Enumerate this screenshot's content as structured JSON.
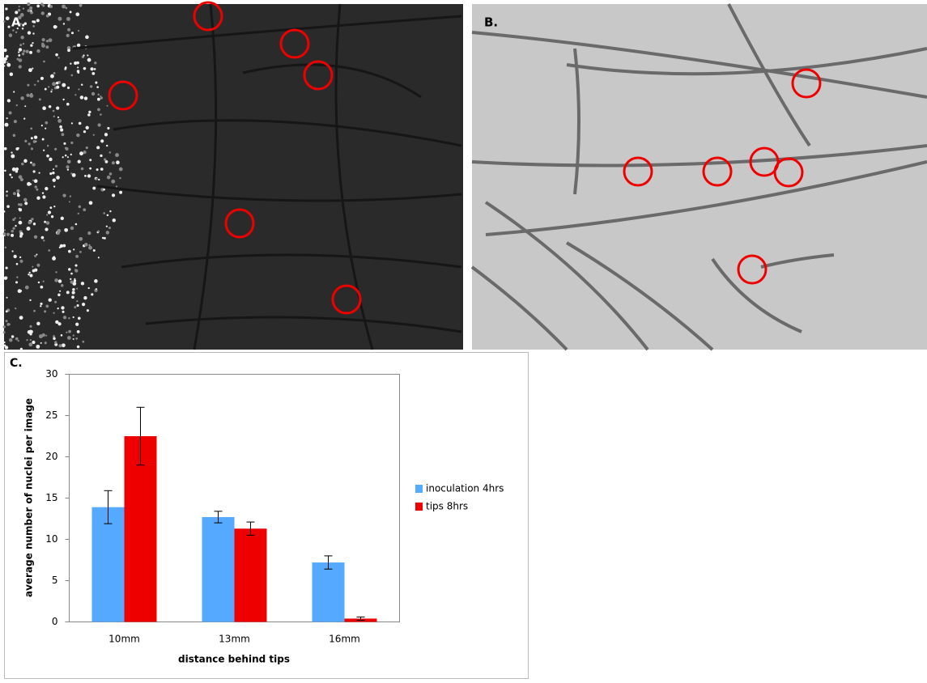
{
  "panel_labels": [
    "A.",
    "B.",
    "C."
  ],
  "chart_data": {
    "type": "bar",
    "xlabel": "distance behind tips",
    "ylabel": "average number of nuclei per image",
    "categories": [
      "10mm",
      "13mm",
      "16mm"
    ],
    "series": [
      {
        "name": "inoculation 4hrs",
        "color": "#55aaff",
        "values": [
          13.9,
          12.7,
          7.2
        ],
        "errors": [
          2,
          0.7,
          0.8
        ]
      },
      {
        "name": "tips 8hrs",
        "color": "#ee0000",
        "values": [
          22.5,
          11.3,
          0.4
        ],
        "errors": [
          3.5,
          0.8,
          0.2
        ]
      }
    ],
    "ylim": [
      0,
      30
    ],
    "yticks": [
      0,
      5,
      10,
      15,
      20,
      25,
      30
    ],
    "grid": false,
    "legend": "right"
  }
}
